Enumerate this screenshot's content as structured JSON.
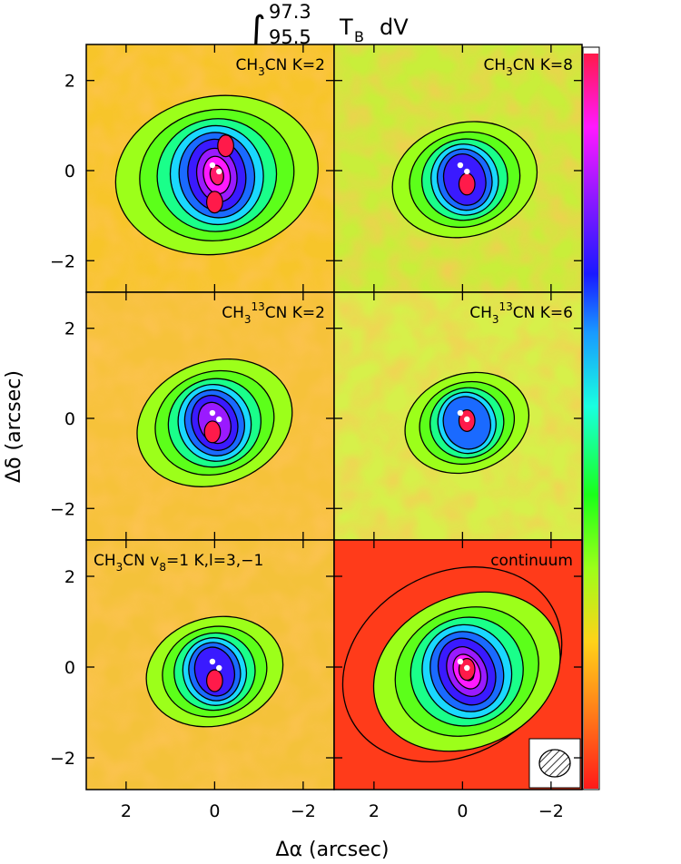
{
  "figure": {
    "title": {
      "integral": "∫",
      "upper": "97.3",
      "lower": "95.5",
      "body": "T",
      "body_sub": "B",
      "tail": "dV"
    },
    "xlabel": "Δα (arcsec)",
    "ylabel": "Δδ (arcsec)",
    "colors": {
      "contour": "#000000",
      "marker": "#ffffff",
      "frame": "#000000"
    },
    "colorbar": {
      "stops": [
        "#ff1a1a",
        "#ff7a1a",
        "#ffd21a",
        "#9cff1a",
        "#1aff1a",
        "#1affe0",
        "#1a9aff",
        "#1a1aff",
        "#8a1aff",
        "#ff1aff",
        "#ff1a4a"
      ]
    },
    "beam_icon": "hatched-ellipse-icon"
  },
  "chart_data": {
    "type": "heatmap",
    "layout": "3 rows × 2 columns, shared axes",
    "xlim": [
      2.9,
      -2.7
    ],
    "ylim": [
      -2.7,
      2.8
    ],
    "x_ticks": [
      2,
      0,
      -2
    ],
    "x_tick_labels": [
      "2",
      "0",
      "−2"
    ],
    "y_ticks": [
      2,
      0,
      -2
    ],
    "y_tick_labels": [
      "2",
      "0",
      "−2"
    ],
    "markers": [
      [
        0.05,
        0.12
      ],
      [
        -0.1,
        -0.02
      ]
    ],
    "panels": [
      {
        "label": "CH3CN K=2",
        "label_parts": {
          "t1": "CH",
          "s1": "3",
          "t2": "CN K=2"
        },
        "peaks": [
          {
            "x": -0.25,
            "y": 0.55
          },
          {
            "x": 0.0,
            "y": -0.7
          }
        ]
      },
      {
        "label": "CH3CN K=8",
        "label_parts": {
          "t1": "CH",
          "s1": "3",
          "t2": "CN K=8"
        },
        "peaks": [
          {
            "x": -0.1,
            "y": -0.3
          }
        ]
      },
      {
        "label": "CH3 13CN K=2",
        "label_parts": {
          "t1": "CH",
          "s1": "3",
          "sup": "13",
          "t2": "CN K=2"
        },
        "peaks": [
          {
            "x": 0.05,
            "y": -0.3
          }
        ]
      },
      {
        "label": "CH3 13CN K=6",
        "label_parts": {
          "t1": "CH",
          "s1": "3",
          "sup": "13",
          "t2": "CN K=6"
        },
        "peaks": [
          {
            "x": -0.1,
            "y": -0.05
          }
        ]
      },
      {
        "label": "CH3CN v8=1 K,l=3,−1",
        "label_parts": {
          "t1": "CH",
          "s1": "3",
          "t2": "CN v",
          "s2": "8",
          "t3": "=1 K,l=3,−1"
        },
        "peaks": [
          {
            "x": 0.0,
            "y": -0.3
          }
        ]
      },
      {
        "label": "continuum",
        "label_parts": {
          "t1": "continuum"
        },
        "peaks": [
          {
            "x": -0.1,
            "y": -0.05
          }
        ]
      }
    ]
  }
}
